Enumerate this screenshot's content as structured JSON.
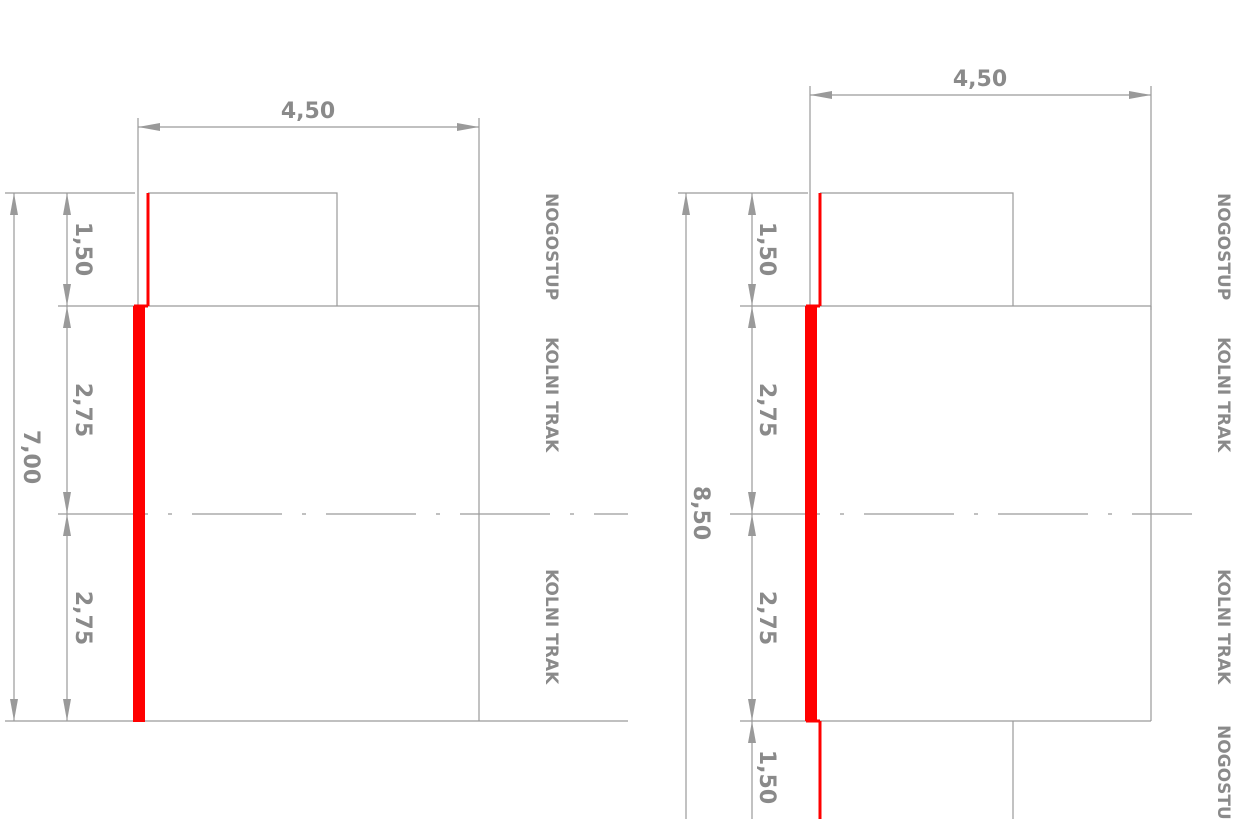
{
  "left_section": {
    "width_dim": "4,50",
    "total_dim": "7,00",
    "dims": [
      "1,50",
      "2,75",
      "2,75"
    ],
    "labels": [
      "NOGOSTUP",
      "KOLNI TRAK",
      "KOLNI TRAK"
    ]
  },
  "right_section": {
    "width_dim": "4,50",
    "total_dim": "8,50",
    "dims": [
      "1,50",
      "2,75",
      "2,75",
      "1,50"
    ],
    "labels": [
      "NOGOSTUP",
      "KOLNI TRAK",
      "KOLNI TRAK",
      "NOGOSTU"
    ]
  },
  "colors": {
    "lines": "#9a9a9a",
    "text": "#8a8a8a",
    "highlight": "#ff0000"
  }
}
